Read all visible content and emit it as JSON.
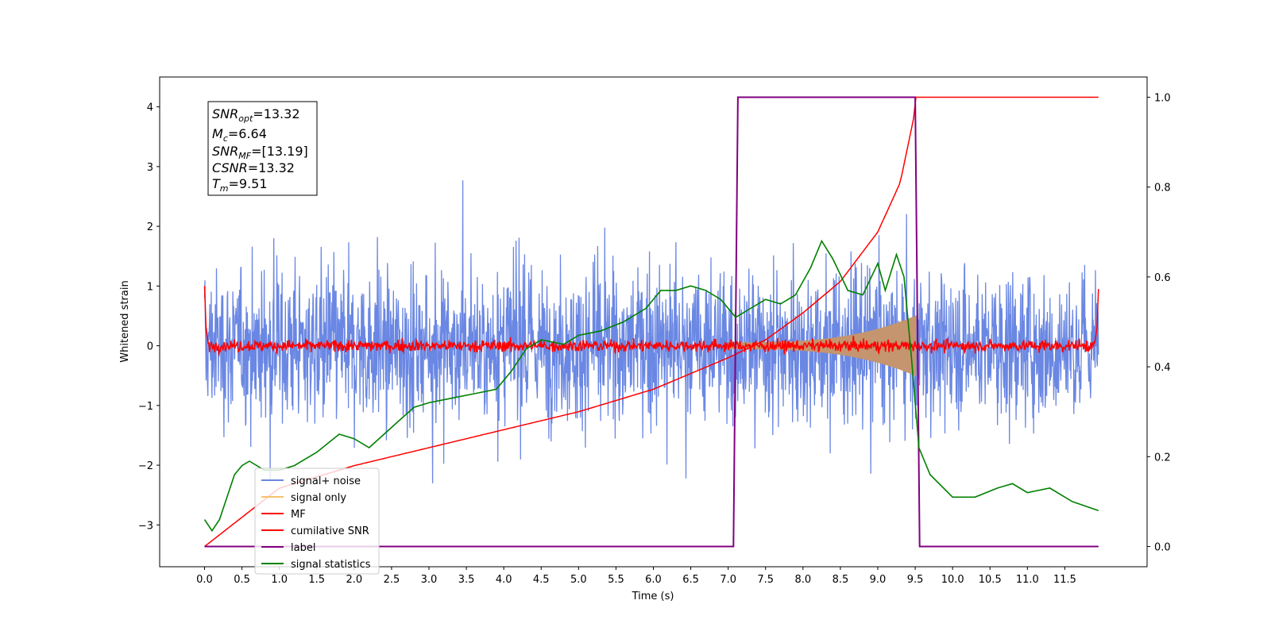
{
  "chart_data": {
    "type": "line",
    "xlabel": "Time (s)",
    "ylabel": "Whitened strain",
    "xlim": [
      -0.6,
      12.6
    ],
    "ylim": [
      -3.7,
      4.5
    ],
    "y2lim": [
      -0.045,
      1.045
    ],
    "x_ticks": [
      "0.0",
      "0.5",
      "1.0",
      "1.5",
      "2.0",
      "2.5",
      "3.0",
      "3.5",
      "4.0",
      "4.5",
      "5.0",
      "5.5",
      "6.0",
      "6.5",
      "7.0",
      "7.5",
      "8.0",
      "8.5",
      "9.0",
      "9.5",
      "10.0",
      "10.5",
      "11.0",
      "11.5"
    ],
    "y_ticks": [
      "4",
      "3",
      "2",
      "1",
      "0",
      "−1",
      "−2",
      "−3"
    ],
    "y2_ticks": [
      "1.0",
      "0.8",
      "0.6",
      "0.4",
      "0.2",
      "0.0"
    ],
    "legend_position": "lower-left",
    "annotation": {
      "snr_opt": {
        "sym": "SNR",
        "sub": "opt",
        "val": "=13.32"
      },
      "mc": {
        "sym": "M",
        "sub": "c",
        "val": "=6.64"
      },
      "snr_mf": {
        "sym": "SNR",
        "sub": "MF",
        "val": "=[13.19]"
      },
      "csnr": {
        "sym": "CSNR",
        "val": "=13.32"
      },
      "tm": {
        "sym": "T",
        "sub": "m",
        "val": "=9.51"
      }
    },
    "series": [
      {
        "name": "signal+ noise",
        "color": "#6a87e3",
        "axis": "left",
        "description_range": [
          -2.6,
          2.6
        ]
      },
      {
        "name": "signal only",
        "color": "#f5c26b",
        "axis": "left",
        "merger_time": 9.51
      },
      {
        "name": "MF",
        "color": "#ff0000",
        "axis": "left",
        "range": [
          -0.15,
          0.15
        ]
      },
      {
        "name": "cumilative SNR",
        "color": "#ff0000",
        "axis": "right",
        "x": [
          0.0,
          1.0,
          2.0,
          3.0,
          4.0,
          5.0,
          6.0,
          7.0,
          7.5,
          8.0,
          8.5,
          9.0,
          9.3,
          9.5,
          9.51,
          12.0
        ],
        "y": [
          0.0,
          0.13,
          0.18,
          0.22,
          0.26,
          0.3,
          0.35,
          0.42,
          0.46,
          0.52,
          0.59,
          0.7,
          0.81,
          0.97,
          1.0,
          1.0
        ]
      },
      {
        "name": "label",
        "color": "#800080",
        "axis": "right",
        "x": [
          0.0,
          7.07,
          7.13,
          9.5,
          9.56,
          11.95
        ],
        "y": [
          0.0,
          0.0,
          1.0,
          1.0,
          0.0,
          0.0
        ]
      },
      {
        "name": "signal statistics",
        "color": "#008000",
        "axis": "right",
        "x": [
          0.0,
          0.1,
          0.2,
          0.3,
          0.4,
          0.5,
          0.6,
          0.8,
          1.0,
          1.2,
          1.5,
          1.8,
          2.0,
          2.2,
          2.4,
          2.6,
          2.8,
          3.0,
          3.3,
          3.6,
          3.9,
          4.1,
          4.3,
          4.5,
          4.8,
          5.0,
          5.3,
          5.6,
          5.9,
          6.1,
          6.3,
          6.5,
          6.7,
          6.9,
          7.1,
          7.3,
          7.5,
          7.7,
          7.9,
          8.1,
          8.25,
          8.4,
          8.6,
          8.8,
          9.0,
          9.1,
          9.25,
          9.35,
          9.45,
          9.55,
          9.7,
          10.0,
          10.3,
          10.6,
          10.8,
          11.0,
          11.3,
          11.6,
          11.95
        ],
        "y": [
          0.06,
          0.035,
          0.06,
          0.11,
          0.16,
          0.18,
          0.19,
          0.17,
          0.17,
          0.18,
          0.21,
          0.25,
          0.24,
          0.22,
          0.25,
          0.28,
          0.31,
          0.32,
          0.33,
          0.34,
          0.35,
          0.39,
          0.44,
          0.46,
          0.45,
          0.47,
          0.48,
          0.5,
          0.53,
          0.57,
          0.57,
          0.58,
          0.57,
          0.55,
          0.51,
          0.53,
          0.55,
          0.54,
          0.56,
          0.62,
          0.68,
          0.64,
          0.57,
          0.56,
          0.63,
          0.57,
          0.65,
          0.6,
          0.42,
          0.22,
          0.16,
          0.11,
          0.11,
          0.13,
          0.14,
          0.12,
          0.13,
          0.1,
          0.08
        ]
      }
    ]
  }
}
